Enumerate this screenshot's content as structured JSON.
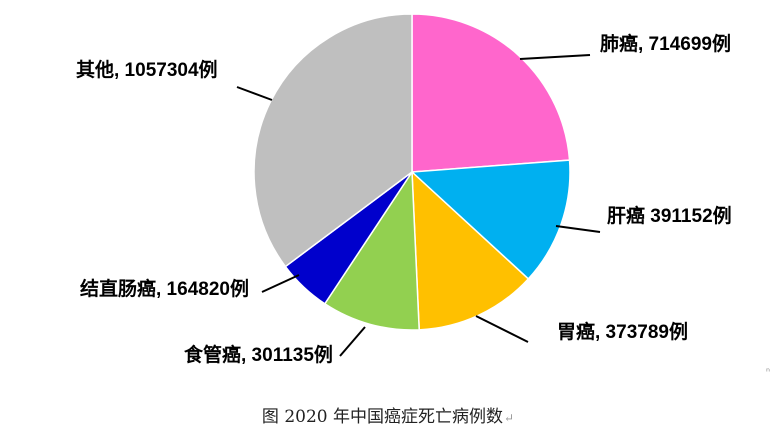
{
  "chart_data": {
    "type": "pie",
    "caption": "图  2020 年中国癌症死亡病例数",
    "slices": [
      {
        "name": "肺癌",
        "value": 714699,
        "label": "肺癌, 714699例",
        "color": "#FF66CC",
        "label_color": "#000000"
      },
      {
        "name": "肝癌",
        "value": 391152,
        "label": "肝癌 391152例",
        "color": "#00B0F0",
        "label_color": "#FF0000"
      },
      {
        "name": "胃癌",
        "value": 373789,
        "label": "胃癌, 373789例",
        "color": "#FFC000",
        "label_color": "#000000"
      },
      {
        "name": "食管癌",
        "value": 301135,
        "label": "食管癌, 301135例",
        "color": "#92D050",
        "label_color": "#000000"
      },
      {
        "name": "结直肠癌",
        "value": 164820,
        "label": "结直肠癌, 164820例",
        "color": "#0000CC",
        "label_color": "#000000"
      },
      {
        "name": "其他",
        "value": 1057304,
        "label": "其他, 1057304例",
        "color": "#BFBFBF",
        "label_color": "#000000"
      }
    ]
  },
  "caption_end_mark": "↵",
  "edge_mark": "ⁿ"
}
